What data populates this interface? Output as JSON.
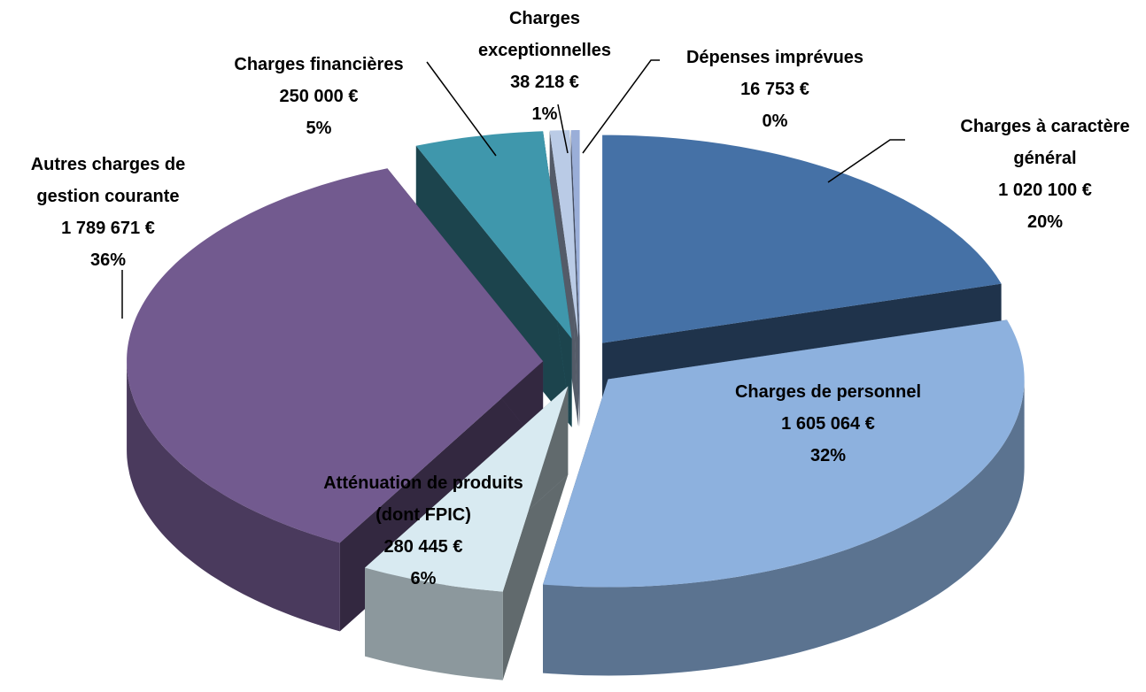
{
  "chart_data": {
    "type": "pie3d",
    "categories": [
      "Charges à caractère général",
      "Charges de personnel",
      "Atténuation de produits (dont FPIC)",
      "Autres charges de gestion courante",
      "Charges financières",
      "Charges exceptionnelles",
      "Dépenses imprévues"
    ],
    "values": [
      1020100,
      1605064,
      280445,
      1789671,
      250000,
      38218,
      16753
    ],
    "value_labels": [
      "1 020 100 €",
      "1 605 064 €",
      "280 445 €",
      "1 789 671 €",
      "250 000 €",
      "38 218 €",
      "16 753 €"
    ],
    "percentages": [
      20,
      32,
      6,
      36,
      5,
      1,
      0
    ],
    "percentage_labels": [
      "20%",
      "32%",
      "6%",
      "36%",
      "5%",
      "1%",
      "0%"
    ],
    "colors": [
      "#4571a6",
      "#8db1de",
      "#d8eaf1",
      "#725a8f",
      "#3f97ac",
      "#bacbe6",
      "#9aaed8"
    ]
  }
}
